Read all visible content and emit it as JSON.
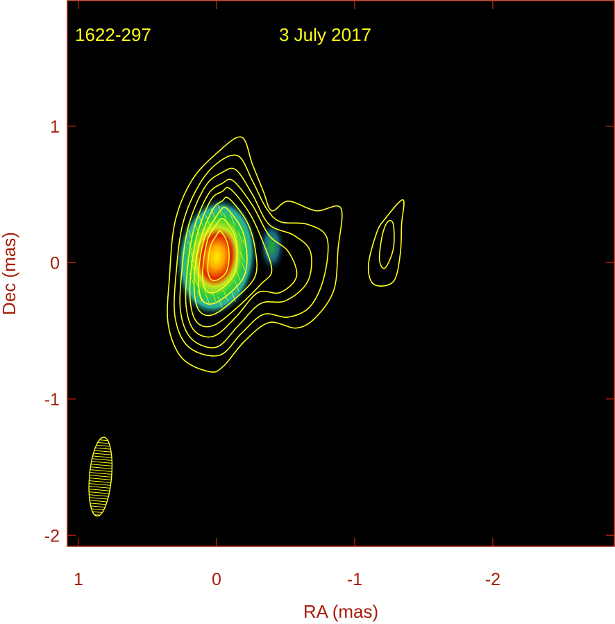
{
  "chart_data": {
    "type": "image-contour",
    "source": "1622-297",
    "date": "3 July 2017",
    "xlabel": "RA (mas)",
    "ylabel": "Dec (mas)",
    "xlim": [
      1.08,
      -2.88
    ],
    "ylim": [
      -2.08,
      1.92
    ],
    "x_ticks": [
      {
        "value": 1,
        "label": "1"
      },
      {
        "value": 0,
        "label": "0"
      },
      {
        "value": -1,
        "label": "-1"
      },
      {
        "value": -2,
        "label": "-2"
      }
    ],
    "y_ticks": [
      {
        "value": 1,
        "label": "1"
      },
      {
        "value": 0,
        "label": "0"
      },
      {
        "value": -1,
        "label": "-1"
      },
      {
        "value": -2,
        "label": "-2"
      }
    ],
    "background": "#000000",
    "frame_color": "#a61d08",
    "contour_color": "#ffff1a",
    "colormap": [
      "#000000",
      "#1e3c78",
      "#2ab0a0",
      "#2ccc3c",
      "#c8e81e",
      "#ffaa00",
      "#e02000"
    ],
    "contours": [
      {
        "points": [
          [
            -0.18,
            0.92
          ],
          [
            -0.26,
            0.72
          ],
          [
            -0.34,
            0.52
          ],
          [
            -0.4,
            0.38
          ],
          [
            -0.52,
            0.45
          ],
          [
            -0.72,
            0.38
          ],
          [
            -0.9,
            0.4
          ],
          [
            -0.88,
            0.1
          ],
          [
            -0.85,
            -0.2
          ],
          [
            -0.72,
            -0.4
          ],
          [
            -0.58,
            -0.48
          ],
          [
            -0.38,
            -0.44
          ],
          [
            -0.2,
            -0.58
          ],
          [
            -0.05,
            -0.76
          ],
          [
            0.05,
            -0.8
          ],
          [
            0.25,
            -0.7
          ],
          [
            0.35,
            -0.45
          ],
          [
            0.34,
            -0.1
          ],
          [
            0.3,
            0.3
          ],
          [
            0.18,
            0.6
          ],
          [
            0.0,
            0.8
          ]
        ]
      },
      {
        "points": [
          [
            -0.16,
            0.78
          ],
          [
            -0.26,
            0.6
          ],
          [
            -0.36,
            0.4
          ],
          [
            -0.46,
            0.3
          ],
          [
            -0.66,
            0.28
          ],
          [
            -0.8,
            0.18
          ],
          [
            -0.78,
            -0.1
          ],
          [
            -0.68,
            -0.32
          ],
          [
            -0.52,
            -0.4
          ],
          [
            -0.34,
            -0.38
          ],
          [
            -0.18,
            -0.52
          ],
          [
            -0.02,
            -0.68
          ],
          [
            0.2,
            -0.62
          ],
          [
            0.3,
            -0.4
          ],
          [
            0.29,
            -0.05
          ],
          [
            0.24,
            0.3
          ],
          [
            0.12,
            0.58
          ],
          [
            -0.02,
            0.74
          ]
        ]
      },
      {
        "points": [
          [
            -0.14,
            0.68
          ],
          [
            -0.26,
            0.5
          ],
          [
            -0.38,
            0.28
          ],
          [
            -0.56,
            0.2
          ],
          [
            -0.68,
            0.08
          ],
          [
            -0.66,
            -0.14
          ],
          [
            -0.5,
            -0.28
          ],
          [
            -0.32,
            -0.3
          ],
          [
            -0.16,
            -0.46
          ],
          [
            0.0,
            -0.62
          ],
          [
            0.18,
            -0.56
          ],
          [
            0.26,
            -0.36
          ],
          [
            0.25,
            -0.05
          ],
          [
            0.2,
            0.28
          ],
          [
            0.08,
            0.56
          ],
          [
            -0.04,
            0.66
          ]
        ]
      },
      {
        "points": [
          [
            -0.12,
            0.6
          ],
          [
            -0.26,
            0.42
          ],
          [
            -0.38,
            0.2
          ],
          [
            -0.52,
            0.08
          ],
          [
            -0.58,
            -0.1
          ],
          [
            -0.46,
            -0.22
          ],
          [
            -0.3,
            -0.22
          ],
          [
            -0.14,
            -0.4
          ],
          [
            0.02,
            -0.54
          ],
          [
            0.16,
            -0.5
          ],
          [
            0.22,
            -0.32
          ],
          [
            0.21,
            -0.04
          ],
          [
            0.16,
            0.26
          ],
          [
            0.06,
            0.5
          ],
          [
            -0.04,
            0.58
          ]
        ]
      },
      {
        "points": [
          [
            -0.1,
            0.54
          ],
          [
            -0.24,
            0.36
          ],
          [
            -0.34,
            0.14
          ],
          [
            -0.4,
            -0.06
          ],
          [
            -0.32,
            -0.16
          ],
          [
            -0.16,
            -0.32
          ],
          [
            0.02,
            -0.46
          ],
          [
            0.14,
            -0.44
          ],
          [
            0.19,
            -0.28
          ],
          [
            0.18,
            -0.02
          ],
          [
            0.13,
            0.24
          ],
          [
            0.04,
            0.46
          ],
          [
            -0.04,
            0.52
          ]
        ]
      },
      {
        "points": [
          [
            -0.09,
            0.47
          ],
          [
            -0.22,
            0.3
          ],
          [
            -0.28,
            0.1
          ],
          [
            -0.28,
            -0.1
          ],
          [
            -0.14,
            -0.26
          ],
          [
            0.02,
            -0.38
          ],
          [
            0.12,
            -0.36
          ],
          [
            0.16,
            -0.22
          ],
          [
            0.15,
            0.0
          ],
          [
            0.1,
            0.22
          ],
          [
            0.02,
            0.4
          ],
          [
            -0.04,
            0.45
          ]
        ]
      },
      {
        "points": [
          [
            -0.07,
            0.4
          ],
          [
            -0.18,
            0.25
          ],
          [
            -0.22,
            0.06
          ],
          [
            -0.2,
            -0.1
          ],
          [
            -0.1,
            -0.22
          ],
          [
            0.02,
            -0.3
          ],
          [
            0.1,
            -0.28
          ],
          [
            0.13,
            -0.16
          ],
          [
            0.12,
            0.02
          ],
          [
            0.08,
            0.2
          ],
          [
            0.0,
            0.34
          ],
          [
            -0.03,
            0.38
          ]
        ]
      },
      {
        "points": [
          [
            -0.05,
            0.32
          ],
          [
            -0.13,
            0.2
          ],
          [
            -0.15,
            0.04
          ],
          [
            -0.13,
            -0.08
          ],
          [
            -0.06,
            -0.17
          ],
          [
            0.02,
            -0.22
          ],
          [
            0.08,
            -0.2
          ],
          [
            0.1,
            -0.1
          ],
          [
            0.09,
            0.04
          ],
          [
            0.06,
            0.18
          ],
          [
            0.0,
            0.28
          ]
        ]
      },
      {
        "points": [
          [
            -0.03,
            0.23
          ],
          [
            -0.08,
            0.14
          ],
          [
            -0.09,
            0.02
          ],
          [
            -0.07,
            -0.07
          ],
          [
            -0.02,
            -0.12
          ],
          [
            0.03,
            -0.13
          ],
          [
            0.06,
            -0.08
          ],
          [
            0.06,
            0.02
          ],
          [
            0.04,
            0.13
          ],
          [
            0.0,
            0.2
          ]
        ]
      },
      {
        "points": [
          [
            -1.35,
            0.46
          ],
          [
            -1.34,
            0.28
          ],
          [
            -1.33,
            0.06
          ],
          [
            -1.28,
            -0.14
          ],
          [
            -1.14,
            -0.16
          ],
          [
            -1.1,
            -0.02
          ],
          [
            -1.16,
            0.22
          ],
          [
            -1.22,
            0.32
          ]
        ]
      },
      {
        "points": [
          [
            -1.28,
            0.28
          ],
          [
            -1.28,
            0.1
          ],
          [
            -1.22,
            -0.04
          ],
          [
            -1.18,
            0.02
          ],
          [
            -1.2,
            0.2
          ],
          [
            -1.24,
            0.3
          ]
        ]
      }
    ],
    "intensity_peak": {
      "ra": 0.0,
      "dec": 0.04
    },
    "jet_knot": {
      "ra": -0.4,
      "dec": 0.12
    },
    "beam": {
      "ra": 0.84,
      "dec": -1.57,
      "major_mas": 0.58,
      "minor_mas": 0.16,
      "pa_deg": 5
    }
  }
}
